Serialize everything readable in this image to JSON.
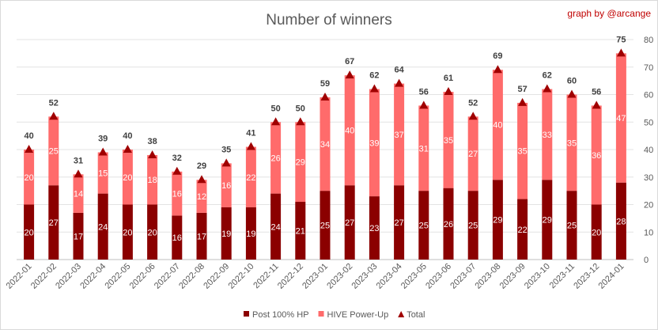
{
  "chart_data": {
    "type": "bar",
    "stacked": true,
    "title": "Number of winners",
    "annotation": "graph by @arcange",
    "categories": [
      "2022-01",
      "2022-02",
      "2022-03",
      "2022-04",
      "2022-05",
      "2022-06",
      "2022-07",
      "2022-08",
      "2022-09",
      "2022-10",
      "2022-11",
      "2022-12",
      "2023-01",
      "2023-02",
      "2023-03",
      "2023-04",
      "2023-05",
      "2023-06",
      "2023-07",
      "2023-08",
      "2023-09",
      "2023-10",
      "2023-11",
      "2023-12",
      "2024-01"
    ],
    "series": [
      {
        "name": "Post 100% HP",
        "type": "bar",
        "color": "#8b0000",
        "values": [
          20,
          27,
          17,
          24,
          20,
          20,
          16,
          17,
          19,
          19,
          24,
          21,
          25,
          27,
          23,
          27,
          25,
          26,
          25,
          29,
          22,
          29,
          25,
          20,
          28
        ]
      },
      {
        "name": "HIVE Power-Up",
        "type": "bar",
        "color": "#ff6b6b",
        "values": [
          20,
          25,
          14,
          15,
          20,
          18,
          16,
          12,
          16,
          22,
          26,
          29,
          34,
          40,
          39,
          37,
          31,
          35,
          27,
          40,
          35,
          33,
          35,
          36,
          47
        ]
      },
      {
        "name": "Total",
        "type": "marker",
        "marker": "triangle",
        "color": "#a00000",
        "values": [
          40,
          52,
          31,
          39,
          40,
          38,
          32,
          29,
          35,
          41,
          50,
          50,
          59,
          67,
          62,
          64,
          56,
          61,
          52,
          69,
          57,
          62,
          60,
          56,
          75
        ]
      }
    ],
    "y_axis": {
      "side": "right",
      "ylim": [
        0,
        80
      ],
      "ticks": [
        0,
        10,
        20,
        30,
        40,
        50,
        60,
        70,
        80
      ]
    },
    "grid": true,
    "legend": "bottom"
  }
}
